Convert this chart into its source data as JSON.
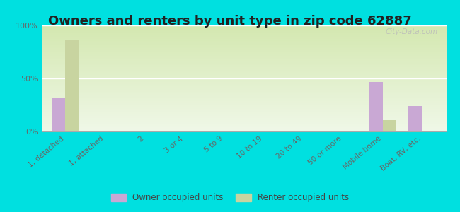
{
  "title": "Owners and renters by unit type in zip code 62887",
  "categories": [
    "1, detached",
    "1, attached",
    "2",
    "3 or 4",
    "5 to 9",
    "10 to 19",
    "20 to 49",
    "50 or more",
    "Mobile home",
    "Boat, RV, etc."
  ],
  "owner_values": [
    32,
    0,
    0,
    0,
    0,
    0,
    0,
    0,
    47,
    24
  ],
  "renter_values": [
    87,
    0,
    0,
    0,
    0,
    0,
    0,
    0,
    11,
    0
  ],
  "owner_color": "#c9a8d4",
  "renter_color": "#c8d4a0",
  "bg_inner_top": "#d4e8b0",
  "bg_inner_bottom": "#f0f8e8",
  "bg_outer": "#00e0e0",
  "ylim": [
    0,
    100
  ],
  "yticks": [
    0,
    50,
    100
  ],
  "ytick_labels": [
    "0%",
    "50%",
    "100%"
  ],
  "bar_width": 0.35,
  "legend_owner": "Owner occupied units",
  "legend_renter": "Renter occupied units",
  "title_fontsize": 13,
  "watermark_text": "City-Data.com"
}
